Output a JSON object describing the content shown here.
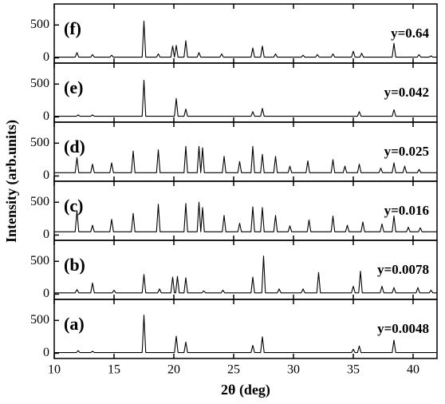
{
  "chart_data": [
    {
      "type": "line",
      "panel_label": "(f)",
      "annotation": "y=0.64",
      "ylabel": "Intensity (arb.units)",
      "color": "#000000",
      "xlim": [
        10,
        42
      ],
      "ylim": [
        -80,
        820
      ],
      "yticks": [
        0,
        500
      ],
      "x": [
        10,
        11.75,
        11.9,
        12.05,
        13.05,
        13.2,
        13.35,
        14.65,
        14.8,
        14.95,
        17.35,
        17.5,
        17.65,
        18.55,
        18.7,
        18.85,
        19.75,
        19.9,
        20.05,
        20.05,
        20.2,
        20.35,
        20.85,
        21.0,
        21.15,
        21.95,
        22.1,
        22.25,
        23.85,
        24.0,
        24.15,
        26.45,
        26.6,
        26.75,
        27.25,
        27.4,
        27.55,
        28.35,
        28.5,
        28.65,
        30.65,
        30.8,
        30.95,
        31.85,
        32.0,
        32.15,
        33.15,
        33.3,
        33.45,
        34.85,
        35.0,
        35.15,
        35.55,
        35.7,
        35.85,
        38.25,
        38.4,
        38.55,
        40.35,
        40.5,
        40.65,
        41.35,
        41.5,
        41.65,
        42
      ],
      "values": [
        10,
        10,
        80,
        10,
        10,
        50,
        10,
        10,
        40,
        10,
        10,
        560,
        10,
        10,
        60,
        10,
        10,
        180,
        10,
        10,
        190,
        10,
        10,
        260,
        10,
        10,
        80,
        10,
        10,
        60,
        10,
        10,
        150,
        10,
        10,
        180,
        10,
        10,
        60,
        10,
        10,
        40,
        10,
        10,
        50,
        10,
        10,
        60,
        10,
        10,
        100,
        10,
        10,
        70,
        10,
        10,
        220,
        10,
        10,
        50,
        10,
        10,
        30,
        10,
        10
      ]
    },
    {
      "type": "line",
      "panel_label": "(e)",
      "annotation": "y=0.042",
      "color": "#000000",
      "xlim": [
        10,
        42
      ],
      "ylim": [
        -80,
        820
      ],
      "yticks": [
        0,
        500
      ],
      "x": [
        10,
        11.85,
        12.0,
        12.15,
        13.05,
        13.2,
        13.35,
        17.35,
        17.5,
        17.65,
        20.05,
        20.2,
        20.35,
        20.85,
        21.0,
        21.15,
        26.45,
        26.6,
        26.75,
        27.25,
        27.4,
        27.55,
        35.35,
        35.5,
        35.65,
        38.25,
        38.4,
        38.55,
        42
      ],
      "values": [
        10,
        10,
        30,
        10,
        10,
        30,
        10,
        10,
        560,
        10,
        10,
        280,
        10,
        10,
        120,
        10,
        10,
        80,
        10,
        10,
        130,
        10,
        10,
        80,
        10,
        10,
        110,
        10,
        10
      ]
    },
    {
      "type": "line",
      "panel_label": "(d)",
      "annotation": "y=0.025",
      "color": "#000000",
      "xlim": [
        10,
        42
      ],
      "ylim": [
        -80,
        820
      ],
      "yticks": [
        0,
        500
      ],
      "x": [
        10,
        11.75,
        11.9,
        12.05,
        13.05,
        13.2,
        13.35,
        14.65,
        14.8,
        14.95,
        16.45,
        16.6,
        16.75,
        18.55,
        18.7,
        18.85,
        20.85,
        21.0,
        21.15,
        21.95,
        22.1,
        22.25,
        22.25,
        22.4,
        22.55,
        24.05,
        24.2,
        24.35,
        25.35,
        25.5,
        25.65,
        26.45,
        26.6,
        26.75,
        27.25,
        27.4,
        27.55,
        28.35,
        28.5,
        28.65,
        29.55,
        29.7,
        29.85,
        31.05,
        31.2,
        31.35,
        33.15,
        33.3,
        33.45,
        34.15,
        34.3,
        34.45,
        35.35,
        35.5,
        35.65,
        37.15,
        37.3,
        37.45,
        38.25,
        38.4,
        38.55,
        39.15,
        39.3,
        39.45,
        40.35,
        40.5,
        40.65,
        42
      ],
      "values": [
        50,
        50,
        280,
        50,
        50,
        180,
        50,
        50,
        200,
        50,
        50,
        380,
        50,
        50,
        400,
        50,
        50,
        450,
        50,
        50,
        450,
        50,
        50,
        430,
        50,
        50,
        300,
        50,
        50,
        220,
        50,
        50,
        450,
        50,
        50,
        330,
        50,
        50,
        300,
        50,
        50,
        150,
        50,
        50,
        230,
        50,
        50,
        250,
        50,
        50,
        150,
        50,
        50,
        180,
        50,
        50,
        120,
        50,
        50,
        200,
        50,
        50,
        150,
        50,
        50,
        100,
        50,
        50
      ]
    },
    {
      "type": "line",
      "panel_label": "(c)",
      "annotation": "y=0.016",
      "color": "#000000",
      "xlim": [
        10,
        42
      ],
      "ylim": [
        -80,
        820
      ],
      "yticks": [
        0,
        500
      ],
      "x": [
        10,
        11.75,
        11.9,
        12.05,
        13.05,
        13.2,
        13.35,
        14.65,
        14.8,
        14.95,
        16.45,
        16.6,
        16.75,
        18.55,
        18.7,
        18.85,
        20.85,
        21.0,
        21.15,
        21.95,
        22.1,
        22.25,
        22.25,
        22.4,
        22.55,
        24.05,
        24.2,
        24.35,
        25.35,
        25.5,
        25.65,
        26.45,
        26.6,
        26.75,
        27.25,
        27.4,
        27.55,
        28.35,
        28.5,
        28.65,
        29.55,
        29.7,
        29.85,
        31.15,
        31.3,
        31.45,
        33.15,
        33.3,
        33.45,
        34.35,
        34.5,
        34.65,
        35.65,
        35.8,
        35.95,
        37.25,
        37.4,
        37.55,
        38.25,
        38.4,
        38.55,
        39.45,
        39.6,
        39.75,
        40.45,
        40.6,
        40.75,
        42
      ],
      "values": [
        50,
        50,
        370,
        50,
        50,
        150,
        50,
        50,
        240,
        50,
        50,
        330,
        50,
        50,
        470,
        50,
        50,
        480,
        50,
        50,
        500,
        50,
        50,
        420,
        50,
        50,
        300,
        50,
        50,
        180,
        50,
        50,
        430,
        50,
        50,
        420,
        50,
        50,
        300,
        50,
        50,
        140,
        50,
        50,
        230,
        50,
        50,
        290,
        50,
        50,
        150,
        50,
        50,
        200,
        50,
        50,
        170,
        50,
        50,
        290,
        50,
        50,
        120,
        50,
        50,
        110,
        50,
        50
      ]
    },
    {
      "type": "line",
      "panel_label": "(b)",
      "annotation": "y=0.0078",
      "color": "#000000",
      "xlim": [
        10,
        42
      ],
      "ylim": [
        -80,
        820
      ],
      "yticks": [
        0,
        500
      ],
      "x": [
        10,
        11.75,
        11.9,
        12.05,
        13.05,
        13.2,
        13.35,
        14.85,
        15.0,
        15.15,
        17.35,
        17.5,
        17.65,
        18.65,
        18.8,
        18.95,
        19.75,
        19.9,
        20.05,
        20.15,
        20.3,
        20.45,
        20.85,
        21.0,
        21.15,
        22.35,
        22.5,
        22.65,
        23.95,
        24.1,
        24.25,
        26.45,
        26.6,
        26.75,
        27.35,
        27.5,
        27.65,
        28.65,
        28.8,
        28.95,
        30.65,
        30.8,
        30.95,
        31.95,
        32.1,
        32.25,
        34.85,
        35.0,
        35.15,
        35.45,
        35.6,
        35.75,
        37.25,
        37.4,
        37.55,
        38.25,
        38.4,
        38.55,
        40.25,
        40.4,
        40.55,
        41.35,
        41.5,
        41.65,
        42
      ],
      "values": [
        20,
        20,
        70,
        20,
        20,
        170,
        20,
        20,
        60,
        20,
        20,
        300,
        20,
        20,
        80,
        20,
        20,
        260,
        20,
        20,
        270,
        20,
        20,
        250,
        20,
        20,
        50,
        20,
        20,
        60,
        20,
        20,
        260,
        20,
        20,
        580,
        20,
        20,
        80,
        20,
        20,
        80,
        20,
        20,
        330,
        20,
        20,
        120,
        20,
        20,
        350,
        20,
        20,
        120,
        20,
        20,
        100,
        20,
        20,
        100,
        20,
        20,
        60,
        20,
        20
      ]
    },
    {
      "type": "line",
      "panel_label": "(a)",
      "annotation": "y=0.0048",
      "xlabel": "2θ  (deg)",
      "color": "#000000",
      "xlim": [
        10,
        42
      ],
      "xticks": [
        10,
        15,
        20,
        25,
        30,
        35,
        40
      ],
      "ylim": [
        -80,
        820
      ],
      "yticks": [
        0,
        500
      ],
      "x": [
        10,
        11.85,
        12.0,
        12.15,
        13.05,
        13.2,
        13.35,
        17.35,
        17.5,
        17.65,
        20.05,
        20.2,
        20.35,
        20.85,
        21.0,
        21.15,
        26.45,
        26.6,
        26.75,
        27.25,
        27.4,
        27.55,
        34.85,
        35.0,
        35.15,
        35.35,
        35.5,
        35.65,
        38.25,
        38.4,
        38.55,
        42
      ],
      "values": [
        10,
        10,
        40,
        10,
        10,
        30,
        10,
        10,
        580,
        10,
        10,
        260,
        10,
        10,
        170,
        10,
        10,
        120,
        10,
        10,
        250,
        10,
        10,
        60,
        10,
        10,
        110,
        10,
        10,
        200,
        10,
        10
      ]
    }
  ]
}
